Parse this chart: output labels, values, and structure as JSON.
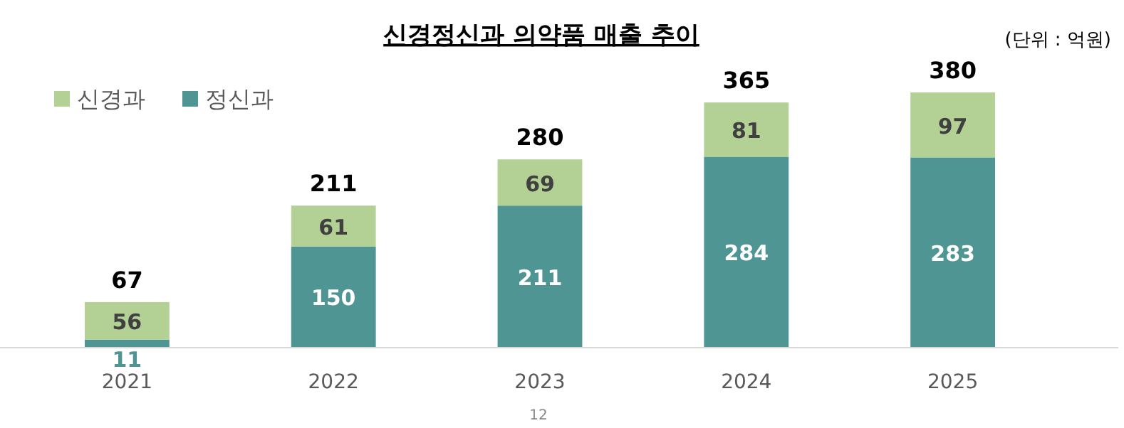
{
  "chart_data": {
    "type": "bar",
    "stacked": true,
    "title": "신경정신과 의약품 매출 추이",
    "annotations": [
      "(단위 : 억원)",
      "12"
    ],
    "categories": [
      "2021",
      "2022",
      "2023",
      "2024",
      "2025"
    ],
    "series": [
      {
        "name": "정신과",
        "color": "#4e9594",
        "values": [
          11,
          150,
          211,
          284,
          283
        ]
      },
      {
        "name": "신경과",
        "color": "#b3d095",
        "values": [
          56,
          61,
          69,
          81,
          97
        ]
      }
    ],
    "totals": [
      "67",
      "211",
      "280",
      "365",
      "380"
    ],
    "data_labels": true,
    "legend": "top left"
  }
}
